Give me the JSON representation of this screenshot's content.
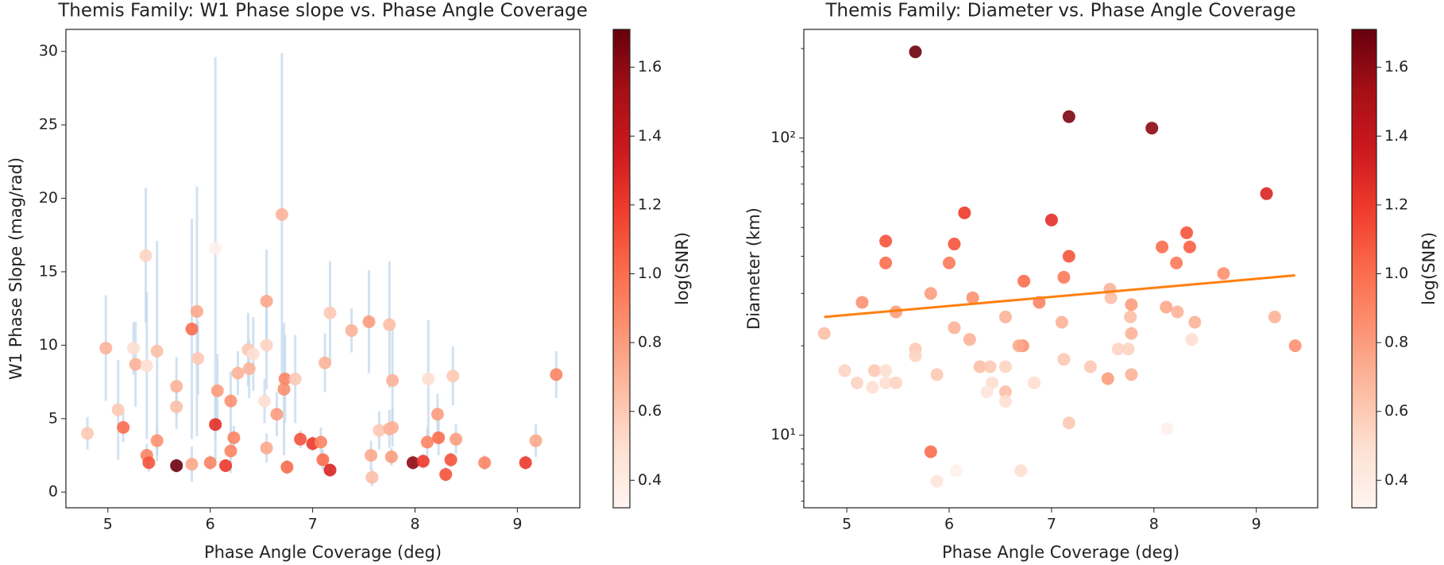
{
  "chart_data": [
    {
      "type": "scatter",
      "title": "Themis Family: W1 Phase slope vs. Phase Angle Coverage",
      "xlabel": "Phase Angle Coverage (deg)",
      "ylabel": "W1 Phase Slope (mag/rad)",
      "xlim": [
        4.59,
        9.61
      ],
      "xticks": [
        5,
        6,
        7,
        8,
        9
      ],
      "ylim": [
        -1.07,
        31.5
      ],
      "yticks": [
        0,
        5,
        10,
        15,
        20,
        25,
        30
      ],
      "errcolor": "#c6dbef",
      "x": [
        4.8,
        4.98,
        5.1,
        5.15,
        5.25,
        5.27,
        5.37,
        5.38,
        5.38,
        5.4,
        5.48,
        5.48,
        5.67,
        5.67,
        5.67,
        5.82,
        5.82,
        5.87,
        5.88,
        6.0,
        6.05,
        6.05,
        6.07,
        6.15,
        6.2,
        6.2,
        6.23,
        6.27,
        6.37,
        6.38,
        6.42,
        6.53,
        6.55,
        6.55,
        6.55,
        6.65,
        6.7,
        6.72,
        6.73,
        6.75,
        6.83,
        6.88,
        7.0,
        7.08,
        7.1,
        7.12,
        7.17,
        7.17,
        7.38,
        7.55,
        7.57,
        7.58,
        7.65,
        7.75,
        7.75,
        7.78,
        7.78,
        7.77,
        7.98,
        8.08,
        8.12,
        8.13,
        8.22,
        8.23,
        8.3,
        8.35,
        8.37,
        8.4,
        8.68,
        9.08,
        9.18,
        9.38
      ],
      "y": [
        4.0,
        9.8,
        5.6,
        4.4,
        9.8,
        8.7,
        16.1,
        8.6,
        2.5,
        2.0,
        9.6,
        3.5,
        1.8,
        7.2,
        5.8,
        11.1,
        1.9,
        12.3,
        9.1,
        2.0,
        16.6,
        4.6,
        6.9,
        1.8,
        6.2,
        2.8,
        3.7,
        8.1,
        9.7,
        8.4,
        9.4,
        6.2,
        13.0,
        10.0,
        3.0,
        5.3,
        18.9,
        7.0,
        7.7,
        1.7,
        7.7,
        3.6,
        3.3,
        3.4,
        2.2,
        8.8,
        12.2,
        1.5,
        11.0,
        11.6,
        2.5,
        1.0,
        4.2,
        11.4,
        4.3,
        7.6,
        4.4,
        2.4,
        2.0,
        2.1,
        3.4,
        7.7,
        5.3,
        3.7,
        1.2,
        2.2,
        7.9,
        3.6,
        2.0,
        2.0,
        3.5,
        8.0
      ],
      "yerr": [
        1.1,
        3.6,
        3.4,
        1.0,
        1.8,
        2.9,
        4.6,
        5,
        0.8,
        0.6,
        7.5,
        1,
        0.5,
        2,
        1.5,
        7.5,
        1.2,
        8.5,
        2.5,
        0.5,
        13,
        2.5,
        2.5,
        0.4,
        2,
        1.5,
        0.8,
        1.5,
        2.5,
        2,
        2.5,
        1.5,
        3.5,
        3,
        1,
        1.5,
        11,
        4.5,
        3,
        0.5,
        3,
        0.6,
        0.5,
        1,
        0.7,
        2,
        3.5,
        0.4,
        1.5,
        3.5,
        1,
        0.6,
        1.3,
        4.3,
        1.3,
        3.5,
        1.3,
        0.6,
        0.5,
        0.5,
        1,
        4,
        1.4,
        1.2,
        0.5,
        0.5,
        2,
        1,
        0.5,
        0.5,
        1.1,
        1.6
      ],
      "c": [
        0.6,
        0.7,
        0.6,
        1.0,
        0.5,
        0.7,
        0.55,
        0.5,
        0.9,
        1.1,
        0.65,
        0.85,
        1.7,
        0.7,
        0.65,
        1.0,
        0.75,
        0.75,
        0.6,
        0.9,
        0.35,
        1.25,
        0.8,
        1.2,
        0.85,
        0.9,
        0.9,
        0.7,
        0.6,
        0.7,
        0.5,
        0.5,
        0.75,
        0.55,
        0.75,
        0.8,
        0.7,
        0.85,
        0.9,
        1.0,
        0.6,
        1.1,
        1.2,
        0.9,
        1.0,
        0.7,
        0.6,
        1.3,
        0.7,
        0.8,
        0.75,
        0.65,
        0.6,
        0.65,
        0.7,
        0.7,
        0.7,
        0.8,
        1.6,
        1.2,
        0.9,
        0.5,
        0.8,
        1.0,
        1.1,
        1.1,
        0.6,
        0.8,
        0.9,
        1.2,
        0.75,
        0.9
      ],
      "colorbar": {
        "label": "log(SNR)",
        "clim": [
          0.32,
          1.71
        ],
        "ticks": [
          0.4,
          0.6,
          0.8,
          1.0,
          1.2,
          1.4,
          1.6
        ]
      },
      "colormap": [
        "#fff5f0",
        "#fee0d2",
        "#fcbba1",
        "#fc9272",
        "#fb6a4a",
        "#ef3b2c",
        "#cb181d",
        "#a50f15",
        "#67000d"
      ]
    },
    {
      "type": "scatter",
      "title": "Themis Family: Diameter vs. Phase Angle Coverage",
      "xlabel": "Phase Angle Coverage (deg)",
      "ylabel": "Diameter (km)",
      "xlim": [
        4.58,
        9.6
      ],
      "xticks": [
        5,
        6,
        7,
        8,
        9
      ],
      "yscale": "log",
      "ylim": [
        5.7,
        232
      ],
      "yticks": [
        {
          "value": 10,
          "label": "10¹"
        },
        {
          "value": 100,
          "label": "10²"
        }
      ],
      "yminorticks": [
        6,
        7,
        8,
        9,
        20,
        30,
        40,
        50,
        60,
        70,
        80,
        90,
        200
      ],
      "x": [
        5.67,
        7.17,
        7.98,
        9.1,
        6.15,
        7.0,
        8.32,
        5.38,
        6.05,
        8.08,
        8.35,
        7.17,
        5.38,
        6.0,
        8.22,
        7.12,
        8.68,
        6.73,
        7.57,
        5.15,
        5.82,
        6.23,
        6.88,
        7.58,
        7.78,
        8.12,
        5.48,
        8.23,
        7.77,
        6.55,
        7.1,
        8.4,
        6.05,
        7.78,
        4.78,
        6.2,
        9.18,
        6.72,
        6.68,
        9.38,
        5.67,
        7.65,
        7.75,
        8.37,
        5.67,
        7.12,
        6.3,
        6.4,
        6.55,
        7.38,
        4.98,
        5.27,
        5.38,
        5.88,
        7.78,
        7.55,
        5.1,
        5.25,
        5.38,
        5.48,
        6.42,
        6.83,
        6.55,
        6.37,
        6.55,
        7.17,
        8.13,
        5.82,
        5.88,
        6.07,
        6.7
      ],
      "y": [
        195,
        118,
        108,
        65,
        56,
        53,
        48,
        45,
        44,
        43,
        43,
        40,
        38,
        38,
        38,
        34,
        35,
        33,
        31,
        28,
        30,
        29,
        28,
        29,
        27.5,
        27,
        26,
        26,
        25,
        25,
        24,
        24,
        23,
        22,
        22,
        21,
        25,
        20,
        20,
        20,
        19.5,
        19.5,
        19.5,
        21,
        18.5,
        18,
        17,
        17,
        17,
        17,
        16.5,
        16.5,
        16.5,
        16,
        16,
        15.5,
        15,
        14.5,
        15,
        15,
        15,
        15,
        14,
        14,
        13,
        11,
        10.5,
        8.8,
        7.0,
        7.6,
        7.6
      ],
      "c": [
        1.7,
        1.65,
        1.6,
        1.3,
        1.2,
        1.25,
        1.1,
        1.1,
        1.1,
        1.0,
        1.05,
        1.1,
        1.0,
        0.95,
        0.95,
        0.95,
        0.85,
        1.0,
        0.7,
        0.85,
        0.8,
        0.85,
        0.9,
        0.65,
        0.8,
        0.75,
        0.8,
        0.7,
        0.65,
        0.7,
        0.7,
        0.7,
        0.7,
        0.7,
        0.65,
        0.7,
        0.7,
        0.85,
        0.75,
        0.85,
        0.6,
        0.55,
        0.55,
        0.5,
        0.55,
        0.6,
        0.65,
        0.6,
        0.55,
        0.6,
        0.55,
        0.6,
        0.5,
        0.6,
        0.7,
        0.8,
        0.55,
        0.5,
        0.5,
        0.55,
        0.5,
        0.5,
        0.65,
        0.45,
        0.5,
        0.6,
        0.35,
        1.0,
        0.45,
        0.35,
        0.5
      ],
      "fit": {
        "x": [
          4.78,
          9.38
        ],
        "y": [
          25,
          34.5
        ],
        "color": "#ff7f0e"
      },
      "colorbar": {
        "label": "log(SNR)",
        "clim": [
          0.32,
          1.71
        ],
        "ticks": [
          0.4,
          0.6,
          0.8,
          1.0,
          1.2,
          1.4,
          1.6
        ]
      },
      "colormap": [
        "#fff5f0",
        "#fee0d2",
        "#fcbba1",
        "#fc9272",
        "#fb6a4a",
        "#ef3b2c",
        "#cb181d",
        "#a50f15",
        "#67000d"
      ]
    }
  ]
}
